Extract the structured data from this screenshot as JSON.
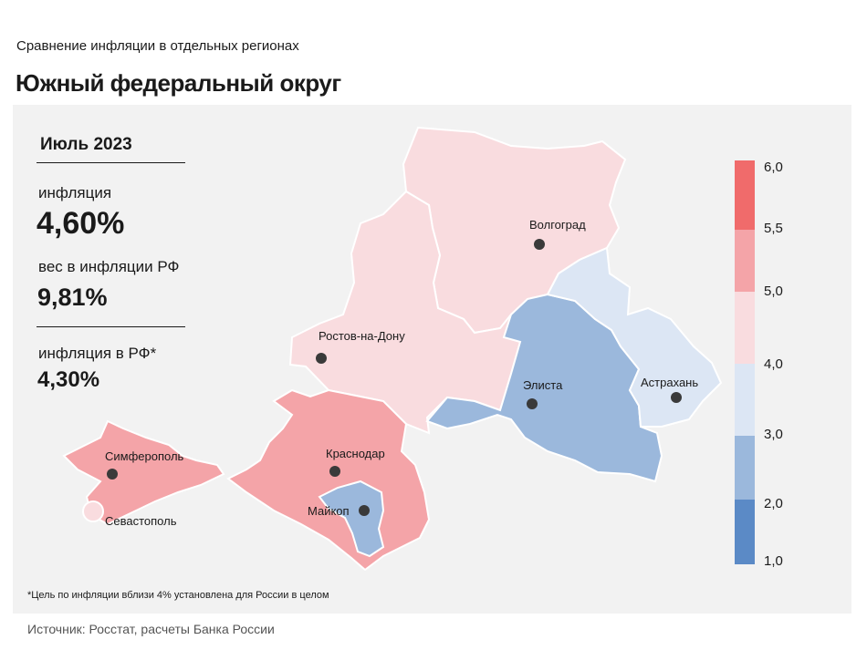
{
  "header": {
    "subtitle": "Сравнение  инфляции  в отдельных  регионах",
    "title": "Южный федеральный округ"
  },
  "info": {
    "period": "Июль 2023",
    "inflation_label": "инфляция",
    "inflation_value": "4,60%",
    "weight_label": "вес в инфляции  РФ",
    "weight_value": "9,81%",
    "rf_label": "инфляция  в РФ*",
    "rf_value": "4,30%"
  },
  "map": {
    "cities": {
      "volgograd": "Волгоград",
      "rostov": "Ростов-на-Дону",
      "elista": "Элиста",
      "astrakhan": "Астрахань",
      "simferopol": "Симферополь",
      "sevastopol": "Севастополь",
      "krasnodar": "Краснодар",
      "maykop": "Майкоп"
    },
    "region_colors": {
      "volgograd_oblast": "#f9dcdf",
      "rostov_oblast": "#f9dcdf",
      "kalmykia": "#9bb8dc",
      "astrakhan_oblast": "#dce6f4",
      "krasnodar_krai": "#f4a4a8",
      "crimea": "#f4a4a8",
      "sevastopol": "#f9dcdf",
      "adygea": "#9bb8dc"
    }
  },
  "legend": {
    "ticks": [
      "6,0",
      "5,5",
      "5,0",
      "4,0",
      "3,0",
      "2,0",
      "1,0"
    ],
    "bands": [
      {
        "range": "5,5–6,0",
        "color": "#f06b6b"
      },
      {
        "range": "5,0–5,5",
        "color": "#f4a4a8"
      },
      {
        "range": "4,0–5,0",
        "color": "#f9dcdf"
      },
      {
        "range": "3,0–4,0",
        "color": "#dce6f4"
      },
      {
        "range": "2,0–3,0",
        "color": "#9bb8dc"
      },
      {
        "range": "1,0–2,0",
        "color": "#5b8ac6"
      }
    ]
  },
  "footnote": "*Цель по инфляции вблизи 4% установлена для России в целом",
  "source": "Источник: Росстат, расчеты Банка России"
}
